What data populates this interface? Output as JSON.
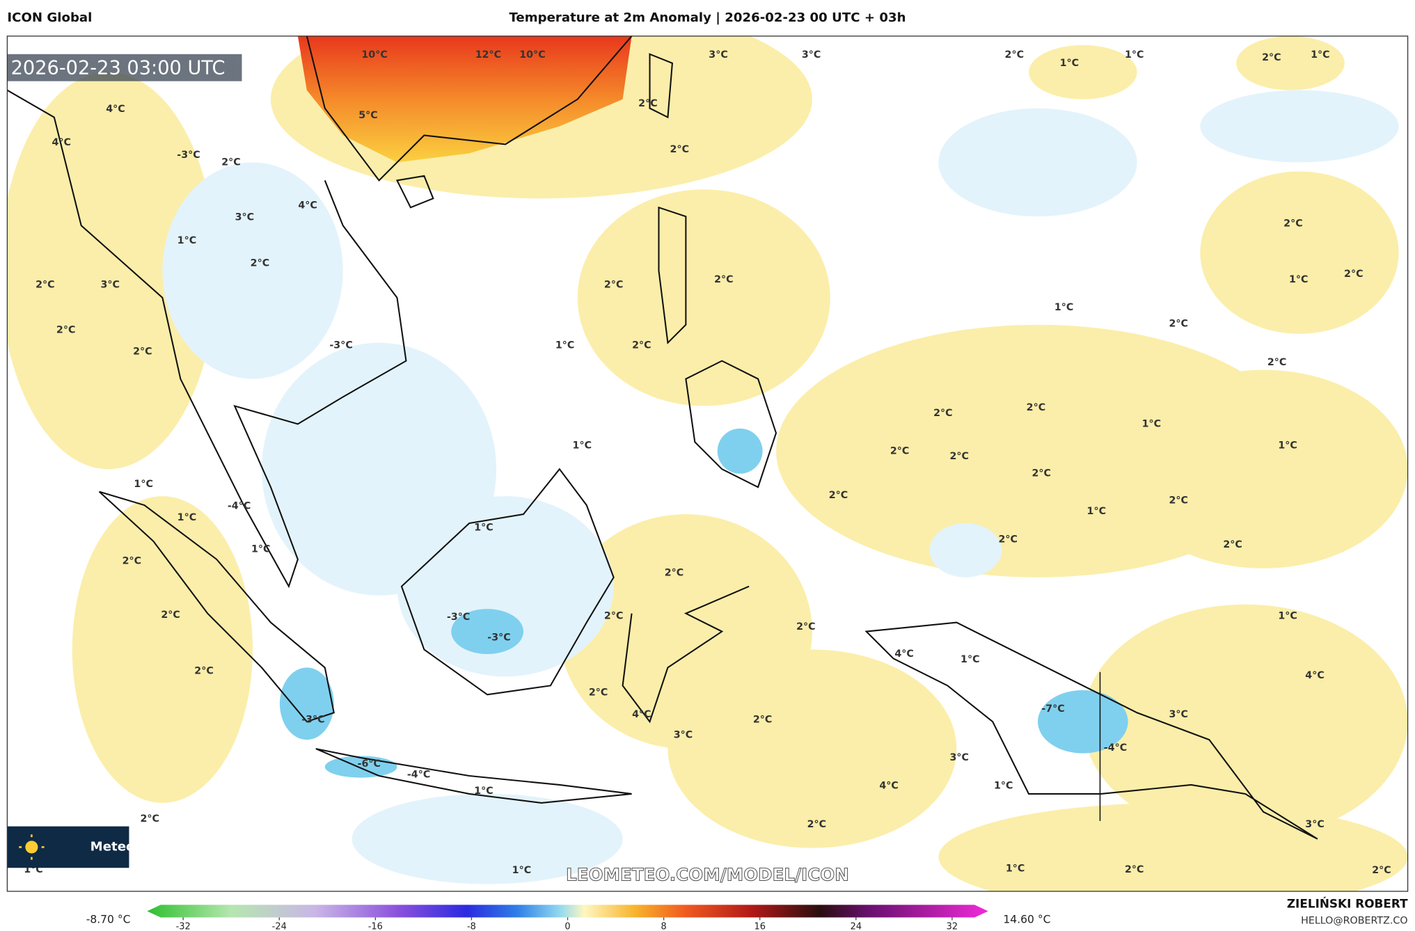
{
  "header": {
    "model": "ICON Global",
    "title": "Temperature at 2m Anomaly | 2026-02-23 00 UTC + 03h"
  },
  "map": {
    "timestamp": "2026-02-23 03:00 UTC",
    "watermark": "LEOMETEO.COM/MODEL/ICON",
    "logo": "Meteo",
    "contour_labels": [
      "10°C",
      "12°C",
      "10°C",
      "3°C",
      "3°C",
      "2°C",
      "1°C",
      "1°C",
      "2°C",
      "1°C",
      "5°C",
      "4°C",
      "4°C",
      "-3°C",
      "2°C",
      "2°C",
      "2°C",
      "4°C",
      "3°C",
      "1°C",
      "2°C",
      "2°C",
      "3°C",
      "2°C",
      "2°C",
      "-3°C",
      "2°C",
      "2°C",
      "1°C",
      "2°C",
      "2°C",
      "1°C",
      "2°C",
      "1°C",
      "2°C",
      "2°C",
      "2°C",
      "2°C",
      "1°C",
      "2°C",
      "2°C",
      "2°C",
      "1°C",
      "1°C",
      "2°C",
      "1°C",
      "1°C",
      "-4°C",
      "1°C",
      "2°C",
      "1°C",
      "2°C",
      "1°C",
      "2°C",
      "2°C",
      "2°C",
      "2°C",
      "-3°C",
      "-3°C",
      "2°C",
      "2°C",
      "4°C",
      "1°C",
      "1°C",
      "2°C",
      "2°C",
      "4°C",
      "3°C",
      "2°C",
      "-7°C",
      "3°C",
      "4°C",
      "-3°C",
      "-4°C",
      "3°C",
      "-6°C",
      "-4°C",
      "1°C",
      "1°C",
      "4°C",
      "2°C",
      "2°C",
      "3°C",
      "1°C",
      "1°C",
      "1°C",
      "2°C",
      "2°C"
    ]
  },
  "colorbar": {
    "min_label": "-8.70 °C",
    "max_label": "14.60 °C",
    "range": [
      -35,
      35
    ],
    "ticks": [
      -32,
      -24,
      -16,
      -8,
      0,
      8,
      16,
      24,
      32
    ]
  },
  "credits": {
    "author": "ZIELIŃSKI ROBERT",
    "contact": "HELLO@ROBERTZ.CO"
  }
}
